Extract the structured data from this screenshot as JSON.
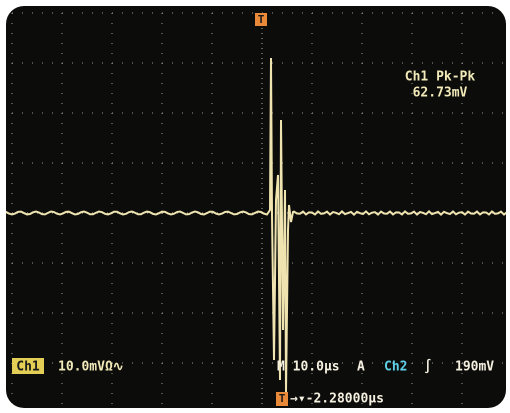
{
  "screen": {
    "measurement": {
      "label": "Ch1 Pk-Pk",
      "value": "62.73mV"
    },
    "channel": {
      "label": "Ch1",
      "scale": "10.0mVΩ∿"
    },
    "timebase": "M 10.0µs",
    "trigger": {
      "mode": "A",
      "source": "Ch2",
      "slope": "∫",
      "level": "190mV",
      "marker": "T",
      "position": "→▾-2.28000µs"
    }
  }
}
